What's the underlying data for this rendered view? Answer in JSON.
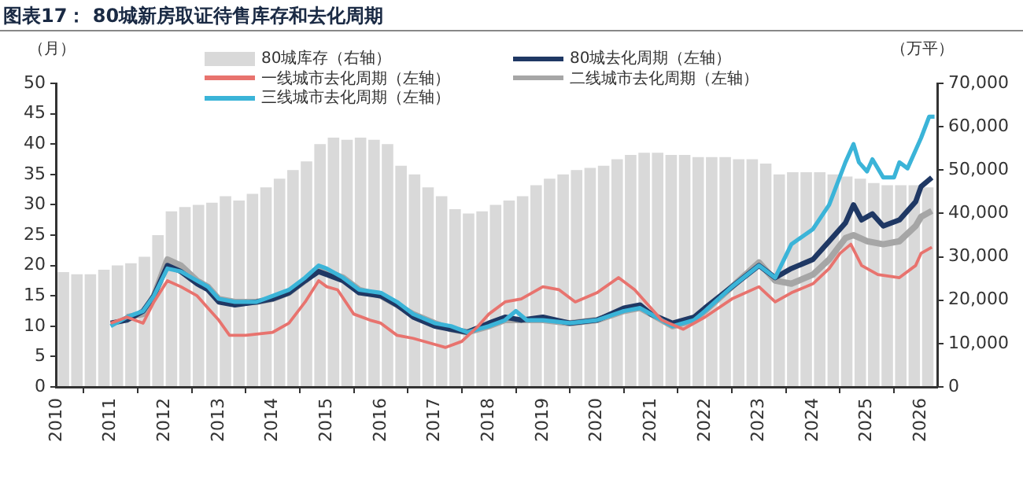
{
  "chart_data": {
    "type": "bar",
    "title": "图表17： 80城新房取证待售库存和去化周期",
    "ylabel": "（月）",
    "y2label": "（万平）",
    "xlim": [
      2010,
      2026.3
    ],
    "xticks": [
      2010,
      2011,
      2012,
      2013,
      2014,
      2015,
      2016,
      2017,
      2018,
      2019,
      2020,
      2021,
      2022,
      2023,
      2024,
      2025,
      2026
    ],
    "ylim": [
      0,
      50
    ],
    "yticks": [
      0,
      5,
      10,
      15,
      20,
      25,
      30,
      35,
      40,
      45,
      50
    ],
    "y2lim": [
      0,
      70000
    ],
    "y2ticks": [
      0,
      {
        "value": 10000,
        "label": "10,000"
      },
      {
        "value": 20000,
        "label": "20,000"
      },
      {
        "value": 30000,
        "label": "30,000"
      },
      {
        "value": 40000,
        "label": "40,000"
      },
      {
        "value": 50000,
        "label": "50,000"
      },
      {
        "value": 60000,
        "label": "60,000"
      },
      {
        "value": 70000,
        "label": "70,000"
      }
    ],
    "grid": false,
    "legend": "top",
    "line_style": "solid",
    "marker": "none",
    "series": [
      {
        "name": "80城库存（右轴）",
        "axis": "y2",
        "color": "#d9d9d9",
        "x": [
          2010.125,
          2010.375,
          2010.625,
          2010.875,
          2011.125,
          2011.375,
          2011.625,
          2011.875,
          2012.125,
          2012.375,
          2012.625,
          2012.875,
          2013.125,
          2013.375,
          2013.625,
          2013.875,
          2014.125,
          2014.375,
          2014.625,
          2014.875,
          2015.125,
          2015.375,
          2015.625,
          2015.875,
          2016.125,
          2016.375,
          2016.625,
          2016.875,
          2017.125,
          2017.375,
          2017.625,
          2017.875,
          2018.125,
          2018.375,
          2018.625,
          2018.875,
          2019.125,
          2019.375,
          2019.625,
          2019.875,
          2020.125,
          2020.375,
          2020.625,
          2020.875,
          2021.125,
          2021.375,
          2021.625,
          2021.875,
          2022.125,
          2022.375,
          2022.625,
          2022.875,
          2023.125,
          2023.375,
          2023.625,
          2023.875,
          2024.125,
          2024.375,
          2024.625,
          2024.875,
          2025.125,
          2025.375,
          2025.625,
          2025.875,
          2026.125
        ],
        "values": [
          26500,
          26000,
          26000,
          27000,
          28000,
          28500,
          30000,
          35000,
          40500,
          41500,
          42000,
          42500,
          44000,
          43000,
          44500,
          46000,
          48000,
          50000,
          52000,
          56000,
          57500,
          57000,
          57500,
          57000,
          56000,
          51000,
          49000,
          46000,
          44000,
          41000,
          40000,
          40500,
          42000,
          43000,
          44000,
          46500,
          48000,
          49000,
          50000,
          50500,
          51000,
          52500,
          53500,
          54000,
          54000,
          53500,
          53500,
          53000,
          53000,
          53000,
          52500,
          52500,
          51500,
          49000,
          49500,
          49500,
          49500,
          49000,
          48500,
          48000,
          47000,
          46500,
          46500,
          46500,
          46000
        ]
      },
      {
        "name": "一线城市去化周期（左轴）",
        "type": "line",
        "color": "#e8736e",
        "x": [
          2011.0,
          2011.3,
          2011.6,
          2011.8,
          2012.05,
          2012.3,
          2012.6,
          2012.8,
          2013.0,
          2013.2,
          2013.5,
          2014.0,
          2014.3,
          2014.6,
          2014.85,
          2015.0,
          2015.2,
          2015.5,
          2015.8,
          2016.0,
          2016.3,
          2016.6,
          2017.0,
          2017.2,
          2017.5,
          2017.8,
          2018.0,
          2018.3,
          2018.6,
          2019.0,
          2019.3,
          2019.6,
          2020.0,
          2020.4,
          2020.7,
          2021.0,
          2021.2,
          2021.6,
          2022.0,
          2022.5,
          2023.0,
          2023.3,
          2023.6,
          2024.0,
          2024.3,
          2024.5,
          2024.7,
          2024.9,
          2025.2,
          2025.6,
          2025.9,
          2026.0,
          2026.2
        ],
        "values": [
          10.5,
          11.5,
          10.5,
          14,
          17.5,
          16.5,
          15,
          13,
          11,
          8.5,
          8.5,
          9,
          10.5,
          14,
          17.5,
          16.5,
          16,
          12,
          11,
          10.5,
          8.5,
          8,
          7,
          6.5,
          7.5,
          10,
          12,
          14,
          14.5,
          16.5,
          16,
          14,
          15.5,
          18,
          16,
          13,
          11,
          9.5,
          11.5,
          14.5,
          16.5,
          14,
          15.5,
          17,
          19.5,
          22,
          23.5,
          20,
          18.5,
          18,
          20,
          22,
          23
        ]
      },
      {
        "name": "三线城市去化周期（左轴）",
        "type": "line",
        "color": "#3bb4d8",
        "x": [
          2011.0,
          2011.3,
          2011.6,
          2011.8,
          2012.05,
          2012.3,
          2012.6,
          2012.8,
          2013.0,
          2013.3,
          2013.7,
          2014.0,
          2014.3,
          2014.6,
          2014.85,
          2015.0,
          2015.3,
          2015.6,
          2016.0,
          2016.3,
          2016.6,
          2017.0,
          2017.3,
          2017.6,
          2018.0,
          2018.3,
          2018.5,
          2018.7,
          2019.0,
          2019.5,
          2020.0,
          2020.5,
          2020.8,
          2021.0,
          2021.4,
          2021.8,
          2022.0,
          2022.5,
          2023.0,
          2023.3,
          2023.6,
          2024.0,
          2024.3,
          2024.6,
          2024.75,
          2024.85,
          2025.0,
          2025.1,
          2025.3,
          2025.5,
          2025.6,
          2025.75,
          2026.0,
          2026.15,
          2026.25
        ],
        "values": [
          10,
          11.5,
          12.5,
          15,
          19.5,
          19,
          17.5,
          16.5,
          14.5,
          14,
          14,
          15,
          16,
          18,
          20,
          19.5,
          18,
          16,
          15.5,
          14,
          12,
          10.5,
          10,
          9,
          10,
          11,
          12.5,
          11,
          11,
          10.5,
          11,
          12.5,
          13,
          12,
          10,
          11,
          12.5,
          16.5,
          20,
          18,
          23.5,
          26,
          30,
          37,
          40,
          37,
          35.5,
          37.5,
          34.5,
          34.5,
          37,
          36,
          41,
          44.5,
          44.5
        ]
      },
      {
        "name": "80城去化周期（左轴）",
        "type": "line",
        "color": "#1f3864",
        "x": [
          2011.0,
          2011.3,
          2011.6,
          2011.8,
          2012.05,
          2012.3,
          2012.6,
          2012.8,
          2013.0,
          2013.3,
          2013.7,
          2014.0,
          2014.3,
          2014.6,
          2014.85,
          2015.0,
          2015.3,
          2015.6,
          2016.0,
          2016.3,
          2016.6,
          2017.0,
          2017.3,
          2017.6,
          2018.0,
          2018.3,
          2018.6,
          2019.0,
          2019.5,
          2020.0,
          2020.5,
          2020.8,
          2021.0,
          2021.4,
          2021.8,
          2022.0,
          2022.5,
          2023.0,
          2023.3,
          2023.6,
          2024.0,
          2024.3,
          2024.6,
          2024.75,
          2024.9,
          2025.1,
          2025.3,
          2025.6,
          2025.9,
          2026.0,
          2026.2
        ],
        "values": [
          10.5,
          11,
          12.5,
          15,
          20,
          19,
          17,
          16,
          14,
          13.5,
          14,
          14.5,
          15.5,
          17.5,
          19,
          18.5,
          17.5,
          15.5,
          15,
          13.5,
          11.5,
          10,
          9.5,
          9,
          10.5,
          11.5,
          11,
          11.5,
          10.5,
          11,
          13,
          13.5,
          12,
          10.5,
          11.5,
          13,
          16.5,
          20,
          18,
          19.5,
          21,
          24,
          27,
          30,
          27.5,
          28.5,
          26.5,
          27.5,
          30.5,
          33,
          34.5
        ]
      },
      {
        "name": "二线城市去化周期（左轴）",
        "type": "line",
        "color": "#a6a6a6",
        "x": [
          2011.3,
          2011.6,
          2011.8,
          2012.05,
          2012.3,
          2012.6,
          2012.8,
          2013.0,
          2013.3,
          2013.7,
          2014.0,
          2014.3,
          2014.6,
          2014.85,
          2015.0,
          2015.3,
          2015.6,
          2016.0,
          2016.3,
          2016.6,
          2017.0,
          2017.3,
          2017.6,
          2018.0,
          2018.3,
          2018.6,
          2019.0,
          2019.5,
          2020.0,
          2020.5,
          2020.8,
          2021.0,
          2021.4,
          2021.8,
          2022.0,
          2022.5,
          2023.0,
          2023.3,
          2023.6,
          2024.0,
          2024.3,
          2024.6,
          2024.75,
          2025.0,
          2025.3,
          2025.6,
          2025.9,
          2026.0,
          2026.2
        ],
        "values": [
          11.5,
          12,
          15,
          21,
          20,
          17.5,
          16.5,
          14.5,
          14,
          14,
          14.5,
          15.5,
          17.5,
          19.5,
          19,
          18,
          16,
          15,
          13.5,
          12,
          10.5,
          9.5,
          9,
          10,
          11,
          11,
          11,
          10.5,
          11,
          12.5,
          13,
          12,
          10,
          11,
          12.5,
          16.5,
          20.5,
          17.5,
          17,
          18.5,
          21,
          24.5,
          25,
          24,
          23.5,
          24,
          26.5,
          28,
          29
        ]
      }
    ]
  }
}
